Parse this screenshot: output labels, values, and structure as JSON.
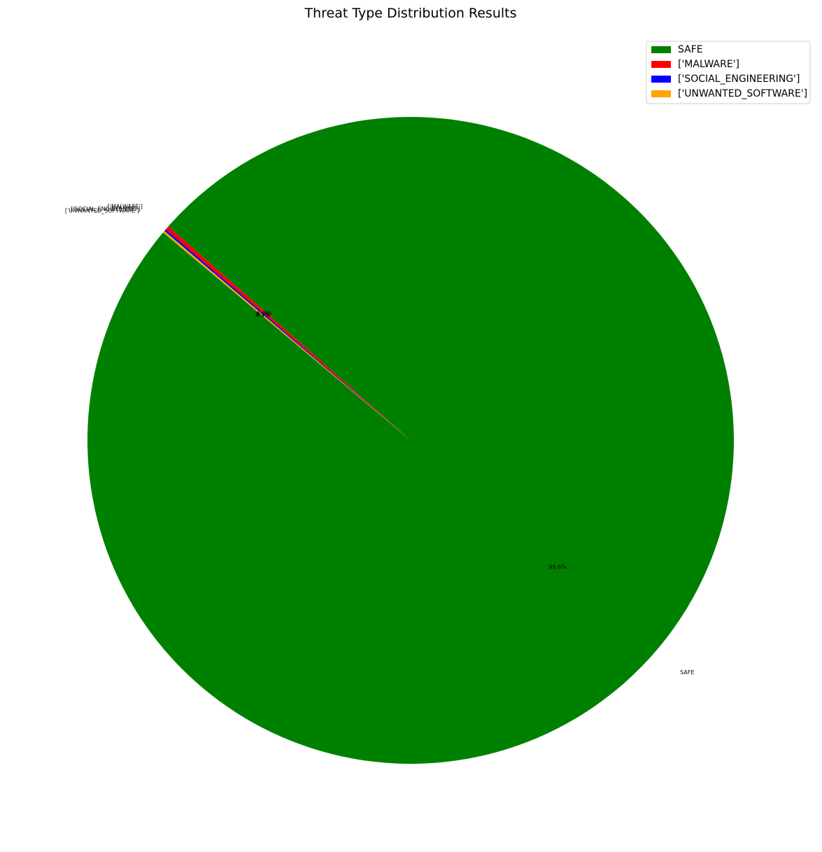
{
  "chart_data": {
    "type": "pie",
    "title": "Threat Type Distribution Results",
    "labels": [
      "SAFE",
      "['MALWARE']",
      "['SOCIAL_ENGINEERING']",
      "['UNWANTED_SOFTWARE']"
    ],
    "values": [
      99.6,
      0.2,
      0.1,
      0.1
    ],
    "value_labels": [
      "99.6%",
      "0.2%",
      "0.1%",
      "0.1%"
    ],
    "colors": [
      "#008000",
      "#ff0000",
      "#0000ff",
      "#ffa500"
    ],
    "start_angle_deg": 140,
    "direction": "counterclockwise",
    "legend": {
      "placement": "top-right"
    }
  }
}
